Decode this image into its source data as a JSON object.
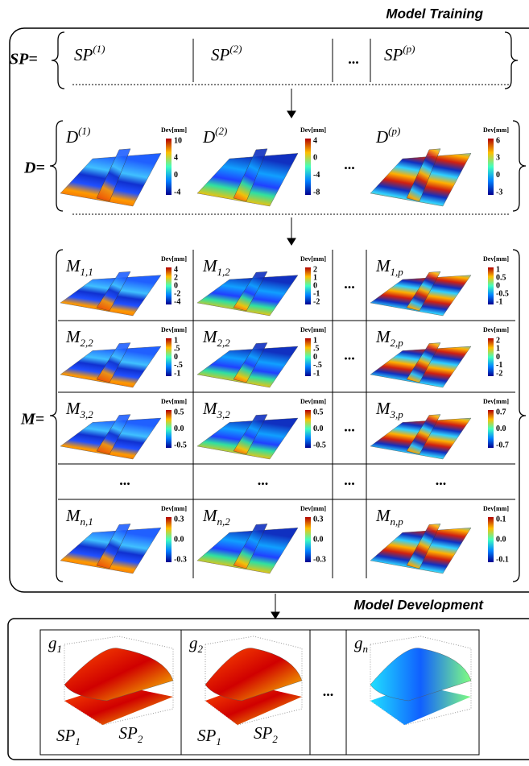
{
  "model_training": {
    "title": "Model Training"
  },
  "sp_row": {
    "label": "SP=",
    "cells": [
      {
        "base": "SP",
        "sup": "(1)"
      },
      {
        "base": "SP",
        "sup": "(2)"
      },
      {
        "text": "..."
      },
      {
        "base": "SP",
        "sup": "(p)"
      }
    ]
  },
  "d_row": {
    "label": "D=",
    "cells": [
      {
        "base": "D",
        "sup": "(1)",
        "unit": "Dev[mm]",
        "ticks": [
          "10",
          "4",
          "0",
          "-4"
        ]
      },
      {
        "base": "D",
        "sup": "(2)",
        "unit": "Dev[mm]",
        "ticks": [
          "4",
          "0",
          "-4",
          "-8"
        ]
      },
      {
        "text": "..."
      },
      {
        "base": "D",
        "sup": "(p)",
        "unit": "Dev[mm]",
        "ticks": [
          "6",
          "3",
          "0",
          "-3"
        ]
      }
    ]
  },
  "m_block": {
    "label": "M=",
    "rows": [
      [
        {
          "base": "M",
          "sub": "1,1",
          "unit": "Dev[mm]",
          "ticks": [
            "4",
            "2",
            "0",
            "-2",
            "-4"
          ]
        },
        {
          "base": "M",
          "sub": "1,2",
          "unit": "Dev[mm]",
          "ticks": [
            "2",
            "1",
            "0",
            "-1",
            "-2"
          ]
        },
        {
          "text": "..."
        },
        {
          "base": "M",
          "sub": "1,p",
          "unit": "Dev[mm]",
          "ticks": [
            "1",
            "0.5",
            "0",
            "-0.5",
            "-1"
          ]
        }
      ],
      [
        {
          "base": "M",
          "sub": "2,2",
          "unit": "Dev[mm]",
          "ticks": [
            "1",
            ".5",
            "0",
            "-.5",
            "-1"
          ]
        },
        {
          "base": "M",
          "sub": "2,2",
          "unit": "Dev[mm]",
          "ticks": [
            "1",
            ".5",
            "0",
            "-.5",
            "-1"
          ]
        },
        {
          "text": "..."
        },
        {
          "base": "M",
          "sub": "2,p",
          "unit": "Dev[mm]",
          "ticks": [
            "2",
            "1",
            "0",
            "-1",
            "-2"
          ]
        }
      ],
      [
        {
          "base": "M",
          "sub": "3,2",
          "unit": "Dev[mm]",
          "ticks": [
            "0.5",
            "0.0",
            "-0.5"
          ]
        },
        {
          "base": "M",
          "sub": "3,2",
          "unit": "Dev[mm]",
          "ticks": [
            "0.5",
            "0.0",
            "-0.5"
          ]
        },
        {
          "text": "..."
        },
        {
          "base": "M",
          "sub": "3,p",
          "unit": "Dev[mm]",
          "ticks": [
            "0.7",
            "0.0",
            "-0.7"
          ]
        }
      ],
      [
        {
          "text": "..."
        },
        {
          "text": "..."
        },
        {
          "text": "..."
        },
        {
          "text": "..."
        }
      ],
      [
        {
          "base": "M",
          "sub": "n,1",
          "unit": "Dev[mm]",
          "ticks": [
            "0.3",
            "0.0",
            "-0.3"
          ]
        },
        {
          "base": "M",
          "sub": "n,2",
          "unit": "Dev[mm]",
          "ticks": [
            "0.3",
            "0.0",
            "-0.3"
          ]
        },
        {
          "base": "M",
          "sub": "n,p",
          "unit": "Dev[mm]",
          "ticks": [
            "0.1",
            "0.0",
            "-0.1"
          ]
        }
      ]
    ]
  },
  "model_development": {
    "title": "Model Development",
    "cells": [
      {
        "base": "g",
        "sub": "1"
      },
      {
        "base": "g",
        "sub": "2"
      },
      {
        "text": "..."
      },
      {
        "base": "g",
        "sub": "n"
      }
    ],
    "x_axis": {
      "base": "SP",
      "sub": "1"
    },
    "y_axis": {
      "base": "SP",
      "sub": "2"
    }
  }
}
